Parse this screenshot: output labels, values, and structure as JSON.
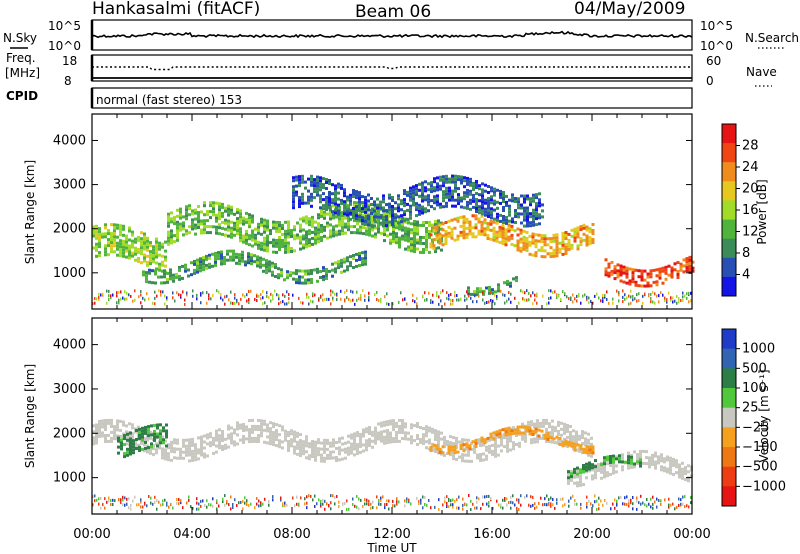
{
  "header": {
    "station": "Hankasalmi (fitACF)",
    "beam": "Beam 06",
    "date": "04/May/2009"
  },
  "nsky_panel": {
    "left_label": "N.Sky",
    "right_label": "N.Search",
    "top_tick": "10^5",
    "bottom_tick": "10^0"
  },
  "freq_panel": {
    "left_label_line1": "Freq.",
    "left_label_line2": "[MHz]",
    "left_top_tick": "18",
    "left_bottom_tick": "8",
    "right_label": "Nave",
    "right_top_tick": "60",
    "right_bottom_tick": "0"
  },
  "cpid": {
    "label": "CPID",
    "value": "normal (fast stereo) 153"
  },
  "colors": {
    "power_scale": [
      "#1414e6",
      "#2850b4",
      "#3c8c5a",
      "#50b43c",
      "#a0dc28",
      "#e6c81e",
      "#f08c1e",
      "#f04614",
      "#e61414"
    ],
    "velocity_scale": [
      "#1e3cc8",
      "#3264b4",
      "#2d7d46",
      "#50c83c",
      "#c8c8c0",
      "#f5a01e",
      "#f07814",
      "#ee3c14",
      "#e61414"
    ],
    "ground_scatter": "#b4b4b4"
  },
  "chart_data": [
    {
      "type": "heatmap",
      "name": "power",
      "ylabel": "Slant Range [km]",
      "xlabel": "Time UT",
      "xlim": [
        "00:00",
        "24:00"
      ],
      "ylim": [
        180,
        4600
      ],
      "x_ticks": [
        "00:00",
        "04:00",
        "08:00",
        "12:00",
        "16:00",
        "20:00",
        "00:00"
      ],
      "y_ticks": [
        "1000",
        "2000",
        "3000",
        "4000"
      ],
      "colorbar": {
        "label": "Power [dB]",
        "ticks": [
          "4",
          "8",
          "12",
          "16",
          "20",
          "24",
          "28"
        ],
        "range": [
          0,
          30
        ]
      },
      "echo_bands": [
        {
          "t_start": 0.0,
          "t_end": 3.0,
          "range_low": 1200,
          "range_high": 1900,
          "power_db": 14
        },
        {
          "t_start": 2.0,
          "t_end": 11.0,
          "range_low": 1000,
          "range_high": 1300,
          "power_db": 10
        },
        {
          "t_start": 3.0,
          "t_end": 14.0,
          "range_low": 1700,
          "range_high": 2400,
          "power_db": 12
        },
        {
          "t_start": 13.5,
          "t_end": 20.0,
          "range_low": 1600,
          "range_high": 2100,
          "power_db": 20
        },
        {
          "t_start": 8.0,
          "t_end": 18.0,
          "range_low": 2300,
          "range_high": 3000,
          "power_db": 6
        },
        {
          "t_start": 20.5,
          "t_end": 24.0,
          "range_low": 900,
          "range_high": 1300,
          "power_db": 26
        },
        {
          "t_start": 15.0,
          "t_end": 17.0,
          "range_low": 700,
          "range_high": 900,
          "power_db": 10
        }
      ]
    },
    {
      "type": "heatmap",
      "name": "velocity",
      "ylabel": "Slant Range [km]",
      "xlabel": "Time UT",
      "xlim": [
        "00:00",
        "24:00"
      ],
      "ylim": [
        180,
        4600
      ],
      "x_ticks": [
        "00:00",
        "04:00",
        "08:00",
        "12:00",
        "16:00",
        "20:00",
        "00:00"
      ],
      "y_ticks": [
        "1000",
        "2000",
        "3000",
        "4000"
      ],
      "colorbar": {
        "label": "Velocity [m s⁻¹]",
        "ticks": [
          "1000",
          "500",
          "100",
          "25",
          "−25",
          "−100",
          "−500",
          "−1000"
        ],
        "range": [
          -1000,
          1000
        ]
      },
      "echo_bands": [
        {
          "t_start": 0.0,
          "t_end": 20.0,
          "range_low": 1600,
          "range_high": 2100,
          "velocity": 0,
          "kind": "ground"
        },
        {
          "t_start": 13.5,
          "t_end": 20.0,
          "range_low": 1750,
          "range_high": 1950,
          "velocity": -80,
          "kind": "echo"
        },
        {
          "t_start": 19.0,
          "t_end": 24.0,
          "range_low": 1000,
          "range_high": 1400,
          "velocity": 20,
          "kind": "ground"
        },
        {
          "t_start": 19.0,
          "t_end": 22.0,
          "range_low": 1100,
          "range_high": 1300,
          "velocity": 110,
          "kind": "echo"
        },
        {
          "t_start": 1.0,
          "t_end": 3.0,
          "range_low": 1500,
          "range_high": 2000,
          "velocity": 120,
          "kind": "echo"
        }
      ]
    }
  ]
}
